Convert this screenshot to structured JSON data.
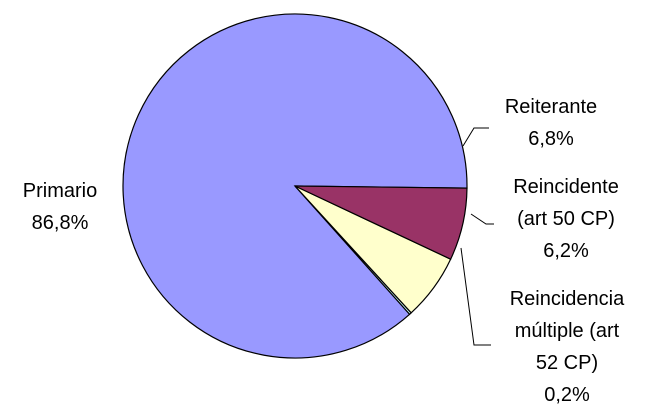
{
  "chart_data": {
    "type": "pie",
    "title": "",
    "start_angle_deg": 359.3,
    "direction": "counterclockwise",
    "slices": [
      {
        "label": "Primario",
        "pct_text": "86,8%",
        "value": 86.8,
        "color": "#9999FF"
      },
      {
        "label": "Reincidencia múltiple (art 52 CP)",
        "label_lines": [
          "Reincidencia",
          "múltiple (art",
          "52 CP)"
        ],
        "pct_text": "0,2%",
        "value": 0.2,
        "color": "#CCFFFF"
      },
      {
        "label": "Reincidente (art 50 CP)",
        "label_lines": [
          "Reincidente",
          "(art 50 CP)"
        ],
        "pct_text": "6,2%",
        "value": 6.2,
        "color": "#FFFFCC"
      },
      {
        "label": "Reiterante",
        "label_lines": [
          "Reiterante"
        ],
        "pct_text": "6,8%",
        "value": 6.8,
        "color": "#993366"
      }
    ]
  }
}
